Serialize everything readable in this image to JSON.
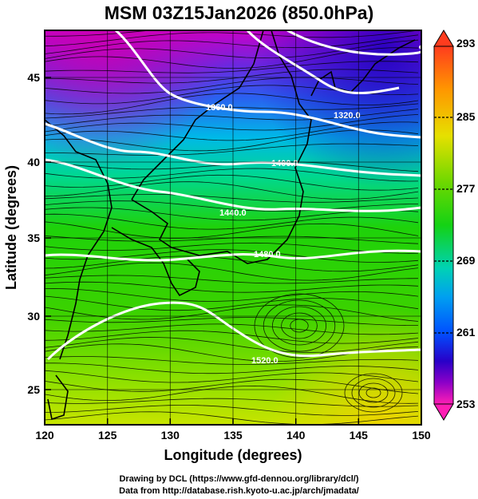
{
  "title": "MSM 03Z15Jan2026 (850.0hPa)",
  "axes": {
    "xlabel": "Longitude (degrees)",
    "ylabel": "Latitude  (degrees)",
    "x_ticks": [
      "120",
      "125",
      "130",
      "135",
      "140",
      "145",
      "150"
    ],
    "y_ticks": [
      "25",
      "30",
      "35",
      "40",
      "45"
    ]
  },
  "colorbar": {
    "ticks": [
      "293",
      "285",
      "277",
      "269",
      "261",
      "253"
    ],
    "colors": [
      "#ff5a3c",
      "#ff9a00",
      "#e8e000",
      "#7fdc00",
      "#1ed200",
      "#00d29e",
      "#00c8f0",
      "#0064ff",
      "#1e00c8",
      "#8c00c8",
      "#ff1eb4"
    ]
  },
  "contours": {
    "labels": [
      "1320.0",
      "1360.0",
      "1400.0",
      "1440.0",
      "1480.0",
      "1520.0"
    ]
  },
  "credits": {
    "line1": "Drawing by DCL (https://www.gfd-dennou.org/library/dcl/)",
    "line2": "Data from http://database.rish.kyoto-u.ac.jp/arch/jmadata/"
  }
}
